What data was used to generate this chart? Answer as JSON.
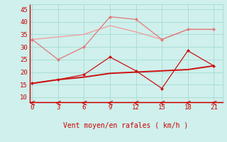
{
  "x": [
    0,
    3,
    6,
    9,
    12,
    15,
    18,
    21
  ],
  "line1_y": [
    33,
    34,
    35,
    38.5,
    36,
    33,
    37,
    37
  ],
  "line2_y": [
    33,
    25,
    30,
    42,
    41,
    33,
    37,
    37
  ],
  "line3_y": [
    15.5,
    17,
    18,
    19.5,
    20,
    20.5,
    21,
    22.5
  ],
  "line4_y": [
    15.5,
    17,
    19,
    26,
    20.5,
    13.5,
    28.5,
    22.5
  ],
  "line1_color": "#f0a0a0",
  "line2_color": "#e07878",
  "line3_color": "#cc1111",
  "line4_color": "#cc1111",
  "bg_color": "#cff0ec",
  "grid_color": "#aaddd8",
  "axis_color": "#cc0000",
  "xlabel": "Vent moyen/en rafales ( km/h )",
  "xlabel_color": "#cc0000",
  "tick_color": "#cc0000",
  "ylim": [
    8,
    47
  ],
  "xlim": [
    -0.3,
    22
  ],
  "yticks": [
    10,
    15,
    20,
    25,
    30,
    35,
    40,
    45
  ],
  "xticks": [
    0,
    3,
    6,
    9,
    12,
    15,
    18,
    21
  ]
}
